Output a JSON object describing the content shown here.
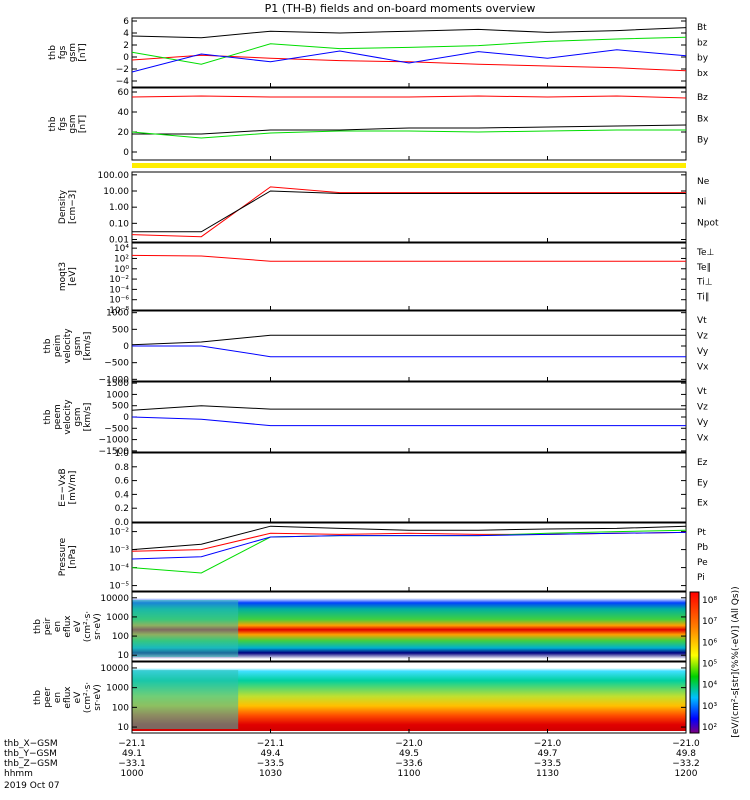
{
  "title": "P1 (TH-B) fields and on-board moments overview",
  "panels": [
    {
      "key": "bfield",
      "ylabel": [
        "thb",
        "fgs",
        "gsm",
        "[nT]"
      ],
      "ticks": [
        "6",
        "4",
        "2",
        "0",
        "−2",
        "−4"
      ],
      "tickvals": [
        6,
        4,
        2,
        0,
        -2,
        -4
      ],
      "ylim": [
        -5,
        6.5
      ],
      "scale": "linear",
      "legend": [
        {
          "text": "Bt",
          "color": "#000000"
        },
        {
          "text": "bz",
          "color": "#ff0000"
        },
        {
          "text": "by",
          "color": "#00dd00"
        },
        {
          "text": "bx",
          "color": "#0000ff"
        }
      ]
    },
    {
      "key": "bfield2",
      "ylabel": [
        "thb",
        "fgs",
        "gsm",
        "[nT]"
      ],
      "ticks": [
        "60",
        "40",
        "20",
        "0"
      ],
      "tickvals": [
        60,
        40,
        20,
        0
      ],
      "ylim": [
        -8,
        64
      ],
      "scale": "linear",
      "legend": [
        {
          "text": "Bz",
          "color": "#ff0000"
        },
        {
          "text": "Bx",
          "color": "#000000"
        },
        {
          "text": "By",
          "color": "#00dd00"
        }
      ]
    },
    {
      "key": "density",
      "ylabel": [
        "Density",
        "[cm−3]"
      ],
      "ticks": [
        "100.00",
        "10.00",
        "1.00",
        "0.10",
        "0.01"
      ],
      "tickvals": [
        100,
        10,
        1,
        0.1,
        0.01
      ],
      "ylim": [
        0.007,
        150
      ],
      "scale": "log",
      "legend": [
        {
          "text": "Ne",
          "color": "#ff0000"
        },
        {
          "text": "Ni",
          "color": "#000000"
        },
        {
          "text": "Npot",
          "color": "#0000ff"
        }
      ]
    },
    {
      "key": "temp",
      "ylabel": [
        "moqt3",
        "[eV]"
      ],
      "ticks": [
        "10⁴",
        "10²",
        "10⁰",
        "10⁻²",
        "10⁻⁴",
        "10⁻⁶",
        "10⁻⁸"
      ],
      "tickvals": [
        10000,
        100,
        1,
        0.01,
        0.0001,
        1e-06,
        1e-08
      ],
      "ylim": [
        1e-08,
        100000
      ],
      "scale": "log",
      "legend": [
        {
          "text": "Te⊥",
          "color": "#ff0000"
        },
        {
          "text": "Te∥",
          "color": "#000000"
        },
        {
          "text": "Ti⊥",
          "color": "#00dd00"
        },
        {
          "text": "Ti∥",
          "color": "#00dd00"
        }
      ]
    },
    {
      "key": "vi",
      "ylabel": [
        "thb",
        "peim",
        "velocity",
        "gsm",
        "[km/s]"
      ],
      "ticks": [
        "1000",
        "500",
        "0",
        "−500",
        "−1000"
      ],
      "tickvals": [
        1000,
        500,
        0,
        -500,
        -1000
      ],
      "ylim": [
        -1050,
        1050
      ],
      "scale": "linear",
      "legend": [
        {
          "text": "Vt",
          "color": "#000000"
        },
        {
          "text": "Vz",
          "color": "#ff0000"
        },
        {
          "text": "Vy",
          "color": "#00dd00"
        },
        {
          "text": "Vx",
          "color": "#0000ff"
        }
      ]
    },
    {
      "key": "ve",
      "ylabel": [
        "thb",
        "peem",
        "velocity",
        "gsm",
        "[km/s]"
      ],
      "ticks": [
        "1500",
        "1000",
        "500",
        "0",
        "−500",
        "−1000",
        "−1500"
      ],
      "tickvals": [
        1500,
        1000,
        500,
        0,
        -500,
        -1000,
        -1500
      ],
      "ylim": [
        -1550,
        1550
      ],
      "scale": "linear",
      "legend": [
        {
          "text": "Vt",
          "color": "#000000"
        },
        {
          "text": "Vz",
          "color": "#ff0000"
        },
        {
          "text": "Vy",
          "color": "#00dd00"
        },
        {
          "text": "Vx",
          "color": "#0000ff"
        }
      ]
    },
    {
      "key": "efield",
      "ylabel": [
        "E=−VxB",
        "[mV/m]"
      ],
      "ticks": [
        "1.0",
        "0.8",
        "0.6",
        "0.4",
        "0.2",
        "0.0"
      ],
      "tickvals": [
        1,
        0.8,
        0.6,
        0.4,
        0.2,
        0
      ],
      "ylim": [
        0,
        1
      ],
      "scale": "linear",
      "legend": [
        {
          "text": "Ez",
          "color": "#ff0000"
        },
        {
          "text": "Ey",
          "color": "#00dd00"
        },
        {
          "text": "Ex",
          "color": "#0000ff"
        }
      ]
    },
    {
      "key": "pressure",
      "ylabel": [
        "Pressure",
        "[nPa]"
      ],
      "ticks": [
        "10⁻²",
        "10⁻³",
        "10⁻⁴",
        "10⁻⁵"
      ],
      "tickvals": [
        0.01,
        0.001,
        0.0001,
        1e-05
      ],
      "ylim": [
        5e-06,
        0.03
      ],
      "scale": "log",
      "legend": [
        {
          "text": "Pt",
          "color": "#000000"
        },
        {
          "text": "Pb",
          "color": "#ff0000"
        },
        {
          "text": "Pe",
          "color": "#00dd00"
        },
        {
          "text": "Pi",
          "color": "#0000ff"
        }
      ]
    },
    {
      "key": "ion_spec",
      "ylabel": [
        "thb",
        "peir",
        "en",
        "eflux",
        "eV",
        "(cm²·s·",
        "sr·eV)"
      ],
      "ticks": [
        "10000",
        "1000",
        "100",
        "10"
      ],
      "tickvals": [
        10000,
        1000,
        100,
        10
      ],
      "ylim": [
        5,
        20000
      ],
      "scale": "log",
      "legend": []
    },
    {
      "key": "el_spec",
      "ylabel": [
        "thb",
        "peer",
        "en",
        "eflux",
        "eV",
        "(cm²·s·",
        "sr·eV)"
      ],
      "ticks": [
        "10000",
        "1000",
        "100",
        "10"
      ],
      "tickvals": [
        10000,
        1000,
        100,
        10
      ],
      "ylim": [
        5,
        20000
      ],
      "scale": "log",
      "legend": []
    }
  ],
  "colorbar": {
    "ticks": [
      "10⁸",
      "10⁷",
      "10⁶",
      "10⁵",
      "10⁴",
      "10³",
      "10²"
    ],
    "label": "[eV/(cm²-s[str](%%(-eV)] (All Qs))",
    "extra": "10⁸"
  },
  "xaxis": {
    "rows": [
      {
        "name": "thb_X−GSM",
        "values": [
          "−21.1",
          "−21.1",
          "−21.0",
          "−21.0",
          "−21.0"
        ]
      },
      {
        "name": "thb_Y−GSM",
        "values": [
          "49.1",
          "49.4",
          "49.5",
          "49.7",
          "49.8"
        ]
      },
      {
        "name": "thb_Z−GSM",
        "values": [
          "−33.1",
          "−33.5",
          "−33.6",
          "−33.5",
          "−33.2"
        ]
      },
      {
        "name": "hhmm",
        "values": [
          "1000",
          "1030",
          "1100",
          "1130",
          "1200"
        ]
      }
    ],
    "date": "2019 Oct 07",
    "times": [
      1000,
      1030,
      1100,
      1130,
      1200
    ]
  },
  "chart_data": {
    "type": "line",
    "title": "P1 (TH-B) fields and on-board moments overview",
    "x_unit": "hhmm",
    "x": [
      1000,
      1015,
      1030,
      1045,
      1100,
      1115,
      1130,
      1145,
      1200
    ],
    "series": [
      {
        "name": "Bt",
        "panel": "bfield",
        "values": [
          3.5,
          3.2,
          4.3,
          4.0,
          4.3,
          4.6,
          4.1,
          4.4,
          4.9
        ]
      },
      {
        "name": "bz",
        "panel": "bfield",
        "values": [
          -0.5,
          0.3,
          -0.2,
          -0.6,
          -0.8,
          -1.2,
          -1.5,
          -1.8,
          -2.3
        ]
      },
      {
        "name": "by",
        "panel": "bfield",
        "values": [
          0.8,
          -1.2,
          2.2,
          1.4,
          1.6,
          1.9,
          2.6,
          3.0,
          3.3
        ]
      },
      {
        "name": "bx",
        "panel": "bfield",
        "values": [
          -2.5,
          0.5,
          -0.8,
          1.0,
          -1.0,
          0.9,
          -0.2,
          1.2,
          0.2
        ]
      },
      {
        "name": "Bz",
        "panel": "bfield2",
        "values": [
          55,
          56,
          55,
          55,
          55,
          56,
          55,
          56,
          54
        ]
      },
      {
        "name": "Bx",
        "panel": "bfield2",
        "values": [
          18,
          18,
          22,
          22,
          24,
          24,
          25,
          26,
          27
        ]
      },
      {
        "name": "By",
        "panel": "bfield2",
        "values": [
          20,
          14,
          19,
          21,
          21,
          20,
          21,
          22,
          22
        ]
      },
      {
        "name": "Ne",
        "panel": "density",
        "values": [
          0.02,
          0.015,
          18,
          8,
          8,
          8,
          8,
          8,
          8
        ]
      },
      {
        "name": "Ni",
        "panel": "density",
        "values": [
          0.03,
          0.03,
          10,
          7,
          7,
          7,
          7,
          7,
          7
        ]
      },
      {
        "name": "Te⊥",
        "panel": "temp",
        "values": [
          400,
          300,
          30,
          30,
          30,
          30,
          30,
          30,
          30
        ]
      },
      {
        "name": "Vt",
        "panel": "vi",
        "values": [
          40,
          120,
          320,
          320,
          320,
          320,
          320,
          320,
          320
        ]
      },
      {
        "name": "Vx",
        "panel": "vi",
        "values": [
          0,
          0,
          -320,
          -320,
          -320,
          -320,
          -320,
          -320,
          -320
        ]
      },
      {
        "name": "Vt",
        "panel": "ve",
        "values": [
          300,
          500,
          350,
          350,
          350,
          350,
          350,
          350,
          350
        ]
      },
      {
        "name": "Vx",
        "panel": "ve",
        "values": [
          0,
          -100,
          -380,
          -380,
          -380,
          -380,
          -380,
          -380,
          -380
        ]
      },
      {
        "name": "Pt",
        "panel": "pressure",
        "values": [
          0.001,
          0.002,
          0.02,
          0.015,
          0.012,
          0.012,
          0.014,
          0.015,
          0.02
        ]
      },
      {
        "name": "Pb",
        "panel": "pressure",
        "values": [
          0.0008,
          0.001,
          0.008,
          0.007,
          0.008,
          0.007,
          0.007,
          0.008,
          0.009
        ]
      },
      {
        "name": "Pe",
        "panel": "pressure",
        "values": [
          0.0001,
          5e-05,
          0.005,
          0.006,
          0.006,
          0.006,
          0.008,
          0.01,
          0.012
        ]
      },
      {
        "name": "Pi",
        "panel": "pressure",
        "values": [
          0.0003,
          0.0004,
          0.005,
          0.006,
          0.006,
          0.006,
          0.007,
          0.008,
          0.009
        ]
      }
    ]
  }
}
